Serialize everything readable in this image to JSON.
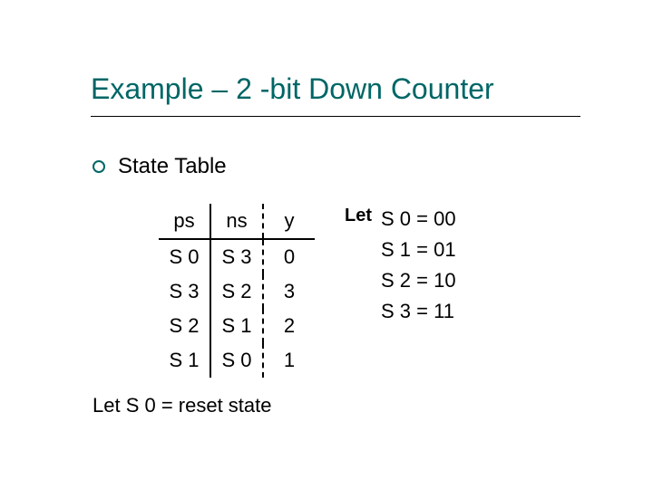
{
  "title": "Example – 2 -bit Down Counter",
  "title_color": "#006666",
  "bullet": {
    "text": "State Table",
    "ring_color": "#006666"
  },
  "table": {
    "headers": [
      "ps",
      "ns",
      "y"
    ],
    "rows": [
      [
        "S 0",
        "S 3",
        "0"
      ],
      [
        "S 3",
        "S 2",
        "3"
      ],
      [
        "S 2",
        "S 1",
        "2"
      ],
      [
        "S 1",
        "S 0",
        "1"
      ]
    ],
    "col_border_right_solid": "#000000",
    "col_border_right_dashed": "#000000",
    "header_bottom_border": "#000000",
    "font_size": 22
  },
  "let": {
    "label": "Let",
    "lines": [
      "S 0 = 00",
      "S 1 = 01",
      "S 2 = 10",
      "S 3 = 11"
    ]
  },
  "footnote": "Let S 0 = reset state",
  "background_color": "#ffffff"
}
